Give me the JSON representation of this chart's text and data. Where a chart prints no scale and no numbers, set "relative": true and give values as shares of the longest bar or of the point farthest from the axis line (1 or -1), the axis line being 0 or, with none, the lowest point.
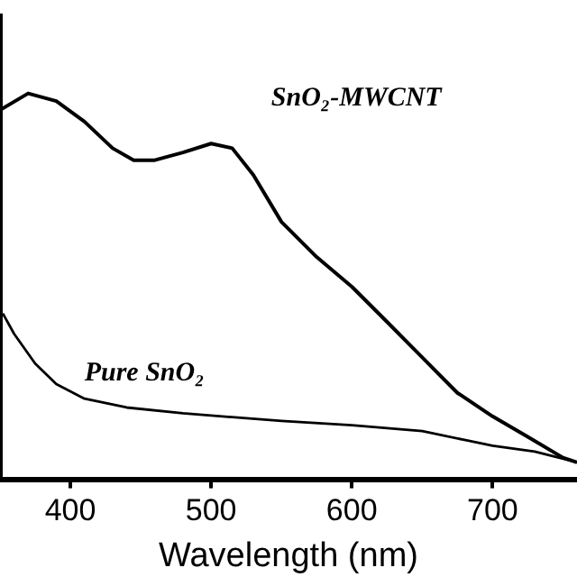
{
  "chart_data": {
    "type": "line",
    "xlabel": "Wavelength (nm)",
    "relative": true,
    "xlim": [
      350,
      760
    ],
    "xticks": [
      400,
      500,
      600,
      700
    ],
    "tick_labels": "x",
    "grid": false,
    "legend": false,
    "marker": "none",
    "line_style": "solid",
    "series": [
      {
        "name": "SnO₂-MWCNT",
        "color": "#000000",
        "x": [
          350,
          370,
          390,
          410,
          430,
          445,
          460,
          480,
          500,
          515,
          530,
          550,
          575,
          600,
          625,
          650,
          675,
          700,
          725,
          750,
          760
        ],
        "values": [
          0.957,
          1.0,
          0.98,
          0.927,
          0.858,
          0.827,
          0.827,
          0.847,
          0.87,
          0.858,
          0.789,
          0.667,
          0.576,
          0.499,
          0.408,
          0.316,
          0.224,
          0.163,
          0.11,
          0.056,
          0.044
        ]
      },
      {
        "name": "Pure SnO₂",
        "color": "#000000",
        "x": [
          352,
          360,
          375,
          390,
          410,
          440,
          480,
          550,
          600,
          650,
          680,
          700,
          730,
          760
        ],
        "values": [
          0.43,
          0.377,
          0.3,
          0.247,
          0.209,
          0.186,
          0.171,
          0.151,
          0.14,
          0.125,
          0.102,
          0.087,
          0.072,
          0.044
        ]
      }
    ]
  }
}
